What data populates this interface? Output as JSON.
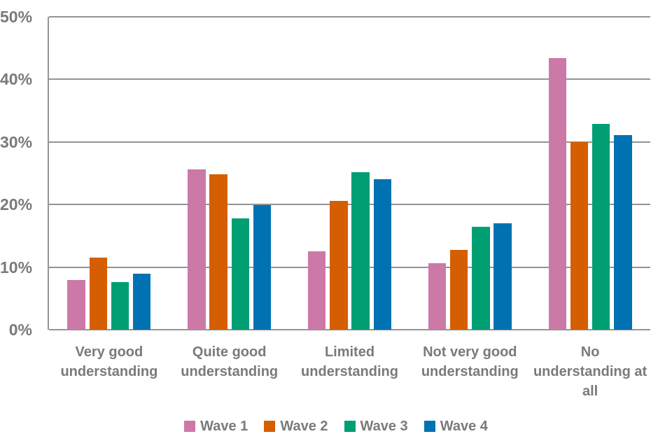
{
  "chart_data": {
    "type": "bar",
    "title": "",
    "categories": [
      "Very good understanding",
      "Quite good understanding",
      "Limited understanding",
      "Not very good understanding",
      "No understanding at all"
    ],
    "series": [
      {
        "name": "Wave 1",
        "color": "#CC79A7",
        "values": [
          7.9,
          25.6,
          12.5,
          10.6,
          43.4
        ]
      },
      {
        "name": "Wave 2",
        "color": "#D55E00",
        "values": [
          11.5,
          24.8,
          20.6,
          12.8,
          30.0
        ]
      },
      {
        "name": "Wave 3",
        "color": "#009E73",
        "values": [
          7.6,
          17.8,
          25.2,
          16.4,
          32.9
        ]
      },
      {
        "name": "Wave 4",
        "color": "#0072B2",
        "values": [
          8.9,
          19.9,
          24.0,
          17.0,
          31.1
        ]
      }
    ],
    "xlabel": "",
    "ylabel": "",
    "y_axis": {
      "min": 0,
      "max": 50,
      "tick_step": 10,
      "ticks": [
        {
          "value": 0,
          "label": "0%"
        },
        {
          "value": 10,
          "label": "10%"
        },
        {
          "value": 20,
          "label": "20%"
        },
        {
          "value": 30,
          "label": "30%"
        },
        {
          "value": 40,
          "label": "40%"
        },
        {
          "value": 50,
          "label": "50%"
        }
      ]
    },
    "grid": true,
    "legend_position": "bottom"
  },
  "ui_colors": {
    "background": "#FFFFFF",
    "gridline": "#949494",
    "axis_line": "#949494",
    "label_text": "#7A7A7A"
  }
}
